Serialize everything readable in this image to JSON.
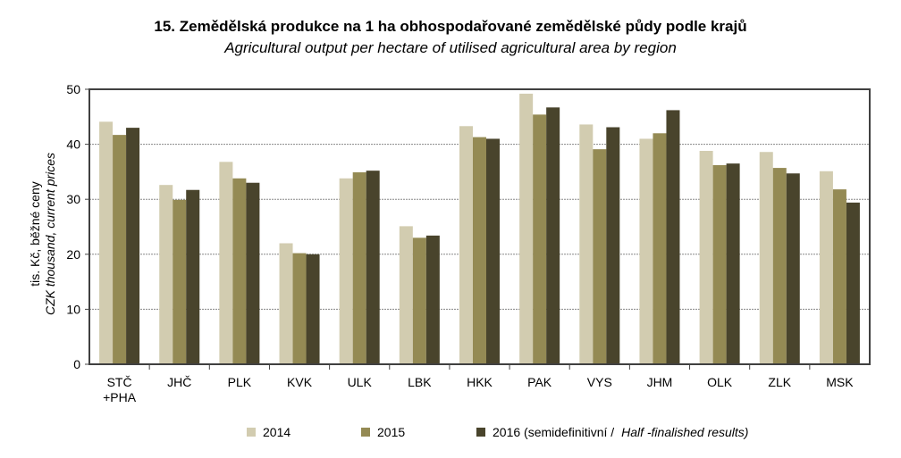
{
  "chart_data": {
    "type": "bar",
    "title": "15. Zemědělská produkce na 1 ha obhospodařované zemědělské půdy podle krajů",
    "subtitle": "Agricultural output per hectare of utilised agricultural area by region",
    "ylabel": "tis. Kč, běžné ceny",
    "ylabel_en": "CZK thousand, current prices",
    "ylim": [
      0,
      50
    ],
    "yticks": [
      "0",
      "10",
      "20",
      "30",
      "40",
      "50"
    ],
    "grid": true,
    "legend_position": "bottom",
    "categories": [
      "STČ\n+PHA",
      "JHČ",
      "PLK",
      "KVK",
      "ULK",
      "LBK",
      "HKK",
      "PAK",
      "VYS",
      "JHM",
      "OLK",
      "ZLK",
      "MSK"
    ],
    "series": [
      {
        "name": "2014",
        "color": "#d2ccb0",
        "values": [
          44.1,
          32.6,
          36.8,
          22.0,
          33.8,
          25.1,
          43.3,
          49.2,
          43.6,
          41.0,
          38.8,
          38.6,
          35.1
        ]
      },
      {
        "name": "2015",
        "color": "#948a54",
        "values": [
          41.7,
          29.9,
          33.8,
          20.2,
          34.9,
          23.0,
          41.3,
          45.4,
          39.1,
          42.0,
          36.2,
          35.7,
          31.8
        ]
      },
      {
        "name": "2016 (semidefinitivní / ",
        "name_en": "Half -finalished results)",
        "color": "#49442c",
        "values": [
          43.0,
          31.7,
          33.0,
          20.0,
          35.2,
          23.4,
          41.0,
          46.7,
          43.1,
          46.2,
          36.5,
          34.7,
          29.4
        ]
      }
    ]
  }
}
